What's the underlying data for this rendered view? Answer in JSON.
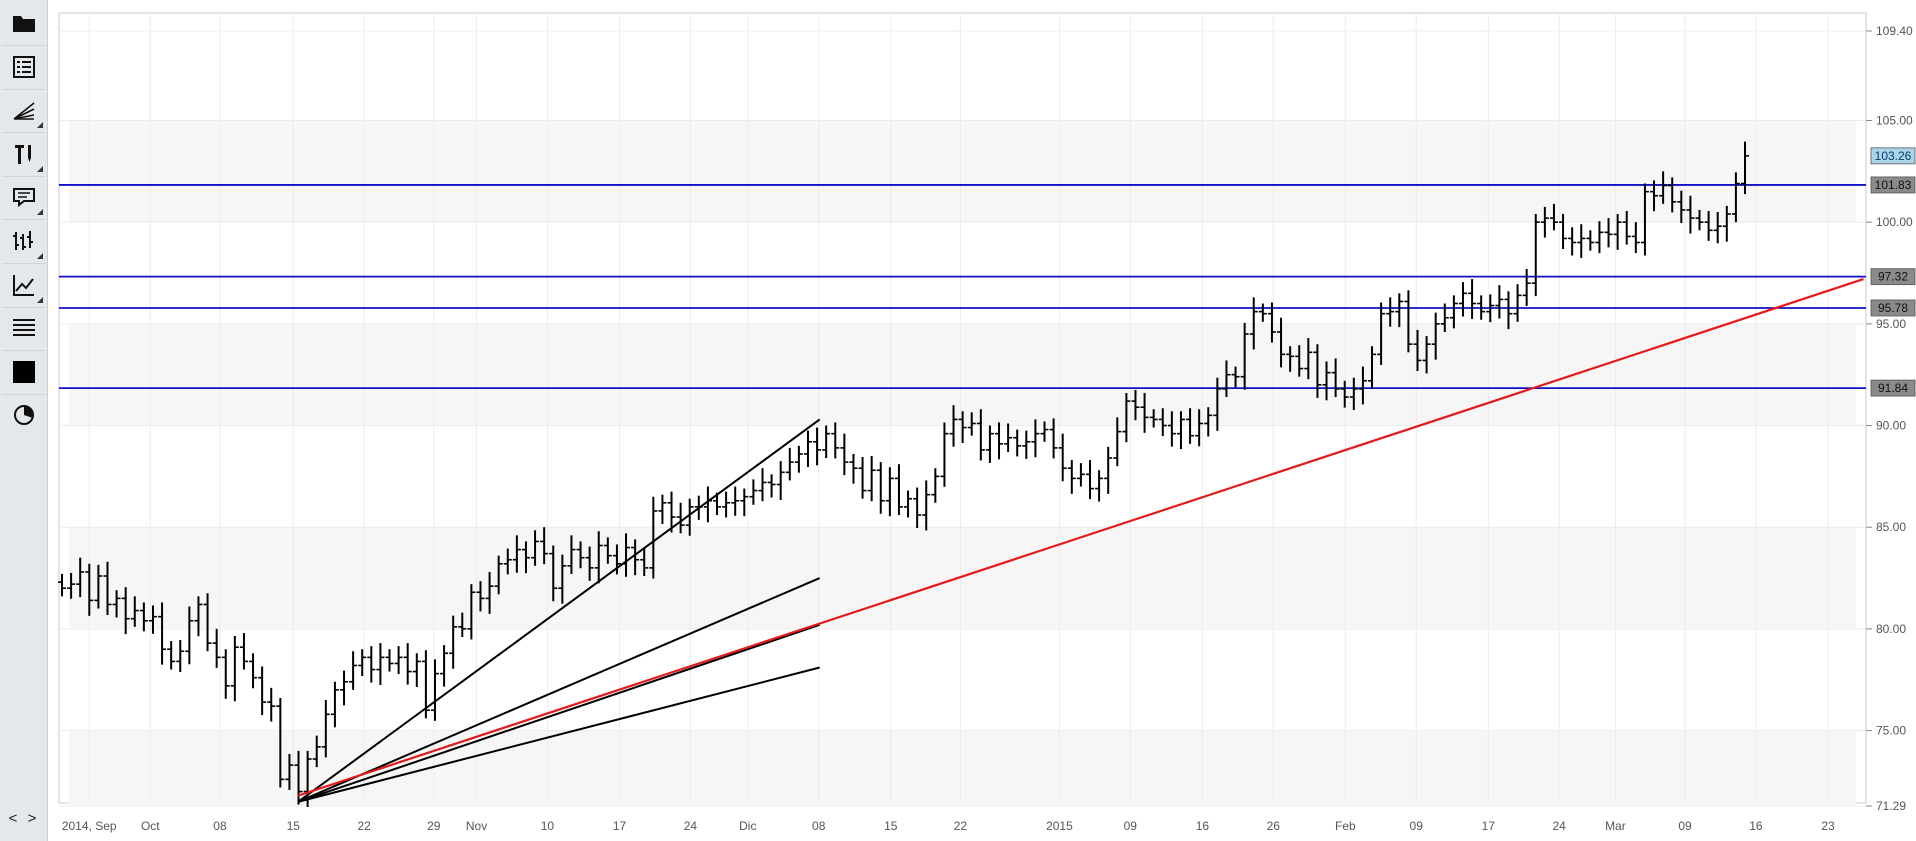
{
  "toolbar": {
    "tools": [
      {
        "name": "folder-icon",
        "submenu": false
      },
      {
        "name": "list-icon",
        "submenu": false
      },
      {
        "name": "fan-lines-icon",
        "submenu": true
      },
      {
        "name": "drawing-tools-icon",
        "submenu": true
      },
      {
        "name": "comment-icon",
        "submenu": true
      },
      {
        "name": "bars-style-icon",
        "submenu": true
      },
      {
        "name": "line-chart-icon",
        "submenu": true
      },
      {
        "name": "grid-lines-icon",
        "submenu": false
      },
      {
        "name": "color-square-icon",
        "submenu": false
      },
      {
        "name": "pie-icon",
        "submenu": false
      }
    ],
    "nav_label": "< >"
  },
  "colors": {
    "horizontal_lines": "#1010c8",
    "trend_line": "#e41a1a",
    "fan_lines": "#000000",
    "bars": "#000000",
    "last_price_tag": "#a9d5ea",
    "level_tag": "#8a8a8a"
  },
  "chart_data": {
    "type": "ohlc",
    "x_tick_labels": [
      "2014, Sep",
      "Oct",
      "08",
      "15",
      "22",
      "29",
      "Nov",
      "10",
      "17",
      "24",
      "Dic",
      "08",
      "15",
      "22",
      "2015",
      "09",
      "16",
      "26",
      "Feb",
      "09",
      "17",
      "24",
      "Mar",
      "09",
      "16",
      "23"
    ],
    "y_tick_labels": [
      "109.40",
      "105.00",
      "100.00",
      "95.00",
      "90.00",
      "85.00",
      "80.00",
      "75.00",
      "71.29"
    ],
    "ylim": [
      71.29,
      109.4
    ],
    "horizontal_levels": [
      101.83,
      97.32,
      95.78,
      91.84
    ],
    "last_price": 103.26,
    "series": [
      {
        "close": [
          82.0,
          82.2,
          82.8,
          81.4,
          82.6,
          81.2,
          81.5,
          80.5,
          80.9,
          80.4,
          80.6,
          79.0,
          78.4,
          78.9,
          80.4,
          81.2,
          79.3,
          78.6,
          77.2,
          79.1,
          78.4,
          77.6,
          76.4,
          76.2,
          72.6,
          73.3,
          72.0,
          73.6,
          74.2,
          75.8,
          77.0,
          77.4,
          78.2,
          78.6,
          78.0,
          78.6,
          78.3,
          78.6,
          77.9,
          78.4,
          76.0,
          77.8,
          78.8,
          80.1,
          80.0,
          81.8,
          81.5,
          82.1,
          83.2,
          83.4,
          83.9,
          83.5,
          84.3,
          83.7,
          82.0,
          83.1,
          83.9,
          83.5,
          83.0,
          84.1,
          83.6,
          83.2,
          84.0,
          83.4,
          83.0,
          85.8,
          86.2,
          85.5,
          85.1,
          86.0,
          86.0,
          86.3,
          86.0,
          86.2,
          86.3,
          86.5,
          86.8,
          87.2,
          87.1,
          87.7,
          88.2,
          88.6,
          89.2,
          88.8,
          89.6,
          88.9,
          88.2,
          87.9,
          86.8,
          87.8,
          86.3,
          87.4,
          86.0,
          86.4,
          85.6,
          86.6,
          87.5,
          89.6,
          90.3,
          89.9,
          90.1,
          88.8,
          89.6,
          89.1,
          89.4,
          89.0,
          89.2,
          89.6,
          89.8,
          88.9,
          87.9,
          87.4,
          87.6,
          86.9,
          87.4,
          88.4,
          89.7,
          91.2,
          90.9,
          90.4,
          90.3,
          90.0,
          89.6,
          90.3,
          89.5,
          90.1,
          90.5,
          91.8,
          92.5,
          92.4,
          94.5,
          95.6,
          95.5,
          94.6,
          93.5,
          93.4,
          92.8,
          93.6,
          92.0,
          92.6,
          91.8,
          91.4,
          91.8,
          92.2,
          93.5,
          95.5,
          95.6,
          96.1,
          94.0,
          93.2,
          94.0,
          95.0,
          95.3,
          96.0,
          96.5,
          96.0,
          95.6,
          95.9,
          96.2,
          95.5,
          96.4,
          97.0,
          100.0,
          100.2,
          100.0,
          99.2,
          99.0,
          99.2,
          99.0,
          99.5,
          99.4,
          100.0,
          99.3,
          99.0,
          101.5,
          101.3,
          101.8,
          101.0,
          100.6,
          100.2,
          100.0,
          99.6,
          99.8,
          100.4,
          101.9,
          103.26
        ]
      }
    ],
    "fan_lines": [
      {
        "from": [
          "15",
          71.5
        ],
        "to": [
          "08",
          90.3
        ]
      },
      {
        "from": [
          "15",
          71.5
        ],
        "to": [
          "08",
          82.5
        ]
      },
      {
        "from": [
          "15",
          71.5
        ],
        "to": [
          "08",
          80.2
        ]
      },
      {
        "from": [
          "15",
          71.5
        ],
        "to": [
          "08",
          78.1
        ]
      }
    ],
    "trend_line": {
      "from": [
        "15",
        71.8
      ],
      "to": [
        "end",
        97.2
      ]
    }
  }
}
